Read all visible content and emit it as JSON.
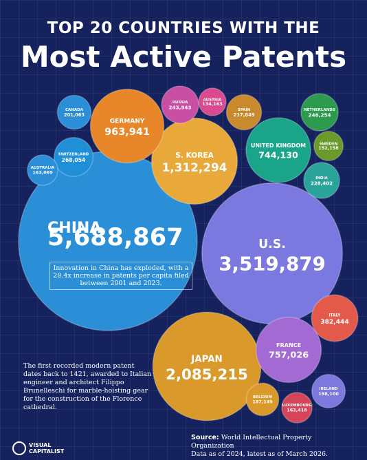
{
  "chart_data": {
    "type": "bubble",
    "title": "TOP 20 COUNTRIES WITH THE",
    "subtitle": "Most Active Patents",
    "categories": [
      "CHINA",
      "U.S.",
      "JAPAN",
      "S. KOREA",
      "GERMANY",
      "FRANCE",
      "UNITED KINGDOM",
      "ITALY",
      "SWITZERLAND",
      "NETHERLANDS",
      "RUSSIA",
      "INDIA",
      "SPAIN",
      "CANADA",
      "IRELAND",
      "BELGIUM",
      "LUXEMBOURG",
      "AUSTRALIA",
      "SWEDEN",
      "AUSTRIA"
    ],
    "values": [
      5688867,
      3519879,
      2085215,
      1312294,
      963941,
      757026,
      744130,
      382444,
      268054,
      246254,
      243943,
      228402,
      217849,
      201063,
      198100,
      187149,
      163418,
      163069,
      152158,
      134163
    ],
    "value_labels": [
      "5,688,867",
      "3,519,879",
      "2,085,215",
      "1,312,294",
      "963,941",
      "757,026",
      "744,130",
      "382,444",
      "268,054",
      "246,254",
      "243,943",
      "228,402",
      "217,849",
      "201,063",
      "198,100",
      "187,149",
      "163,418",
      "163,069",
      "152,158",
      "134,163"
    ],
    "colors": [
      "#2b8fd8",
      "#7b79e0",
      "#d99a2b",
      "#e8a83a",
      "#e8862a",
      "#a36ad4",
      "#1aa58a",
      "#e45a4a",
      "#1f8fd8",
      "#2c9b4f",
      "#c94fa5",
      "#2aa39a",
      "#c9892d",
      "#2a8fd8",
      "#7d78dc",
      "#d99a2b",
      "#d5455a",
      "#2a8fd8",
      "#6a9a2a",
      "#d94a8e"
    ],
    "annotation": "Innovation in China has exploded, with a 28.4x increase in patents per capita filed between 2001 and 2023.",
    "side_note": "The first recorded modern patent dates back to 1421, awarded to Italian engineer and architect Filippo Brunelleschi for marble-hoisting gear for the construction of the Florence cathedral.",
    "source_label": "Source:",
    "source": "World Intellectual Property Organization",
    "data_note": "Data as of 2024, latest as of March 2026.",
    "brand": "VISUAL CAPITALIST"
  }
}
